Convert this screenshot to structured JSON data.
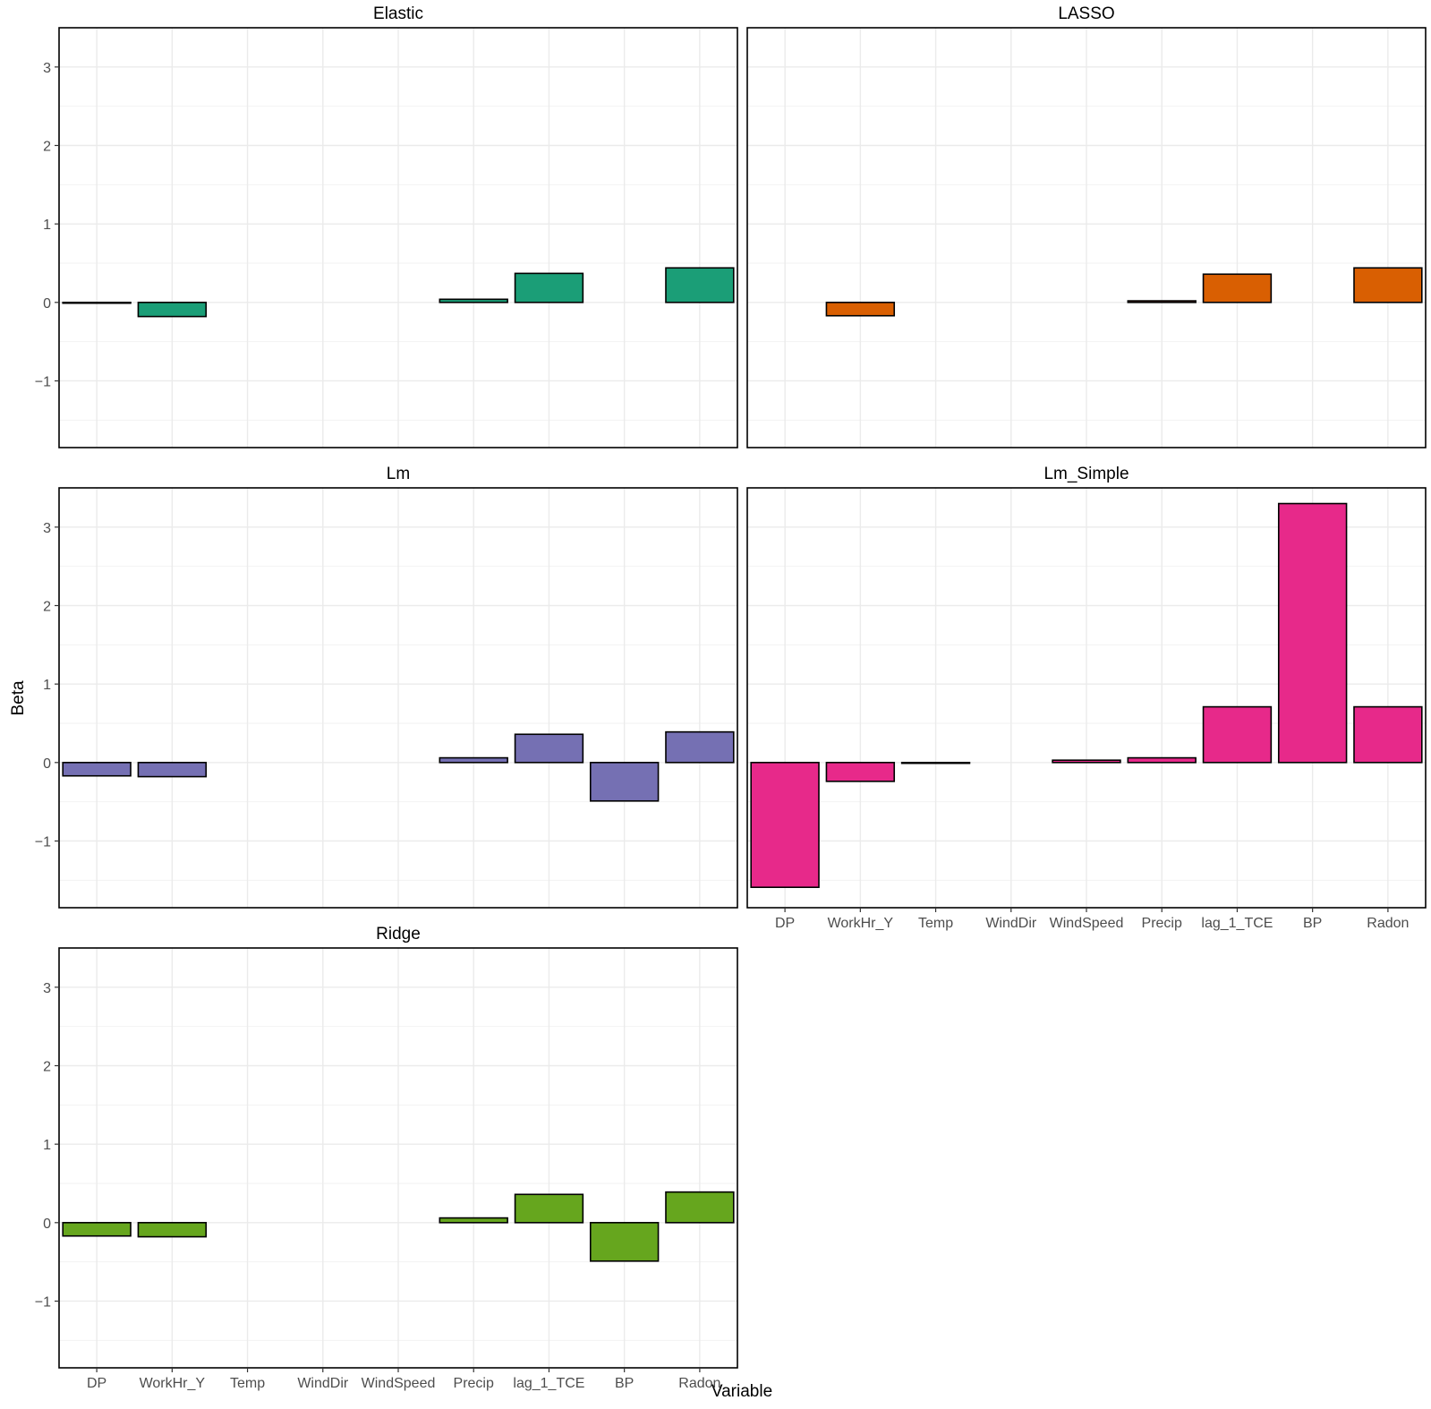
{
  "chart_data": {
    "type": "bar",
    "layout": "facet-wrap",
    "xlabel": "Variable",
    "ylabel": "Beta",
    "ylim": [
      -1.85,
      3.5
    ],
    "y_ticks": [
      -1,
      0,
      1,
      2,
      3
    ],
    "y_tick_labels": [
      "−1",
      "0",
      "1",
      "2",
      "3"
    ],
    "grid": true,
    "categories": [
      "DP",
      "WorkHr_Y",
      "Temp",
      "WindDir",
      "WindSpeed",
      "Precip",
      "lag_1_TCE",
      "BP",
      "Radon"
    ],
    "series": [
      {
        "name": "Elastic",
        "color": "#1b9e77",
        "values": [
          -0.01,
          -0.18,
          0.0,
          0.0,
          0.0,
          0.04,
          0.37,
          0.0,
          0.44
        ]
      },
      {
        "name": "LASSO",
        "color": "#d95f02",
        "values": [
          0.0,
          -0.17,
          0.0,
          0.0,
          0.0,
          0.02,
          0.36,
          0.0,
          0.44
        ]
      },
      {
        "name": "Lm",
        "color": "#7570b3",
        "values": [
          -0.17,
          -0.18,
          0.0,
          0.0,
          0.0,
          0.06,
          0.36,
          -0.49,
          0.39
        ]
      },
      {
        "name": "Lm_Simple",
        "color": "#e7298a",
        "values": [
          -1.59,
          -0.24,
          -0.01,
          0.0,
          0.03,
          0.06,
          0.71,
          3.3,
          0.71
        ]
      },
      {
        "name": "Ridge",
        "color": "#66a61e",
        "values": [
          -0.17,
          -0.18,
          0.0,
          0.0,
          0.0,
          0.06,
          0.36,
          -0.49,
          0.39
        ]
      }
    ]
  }
}
